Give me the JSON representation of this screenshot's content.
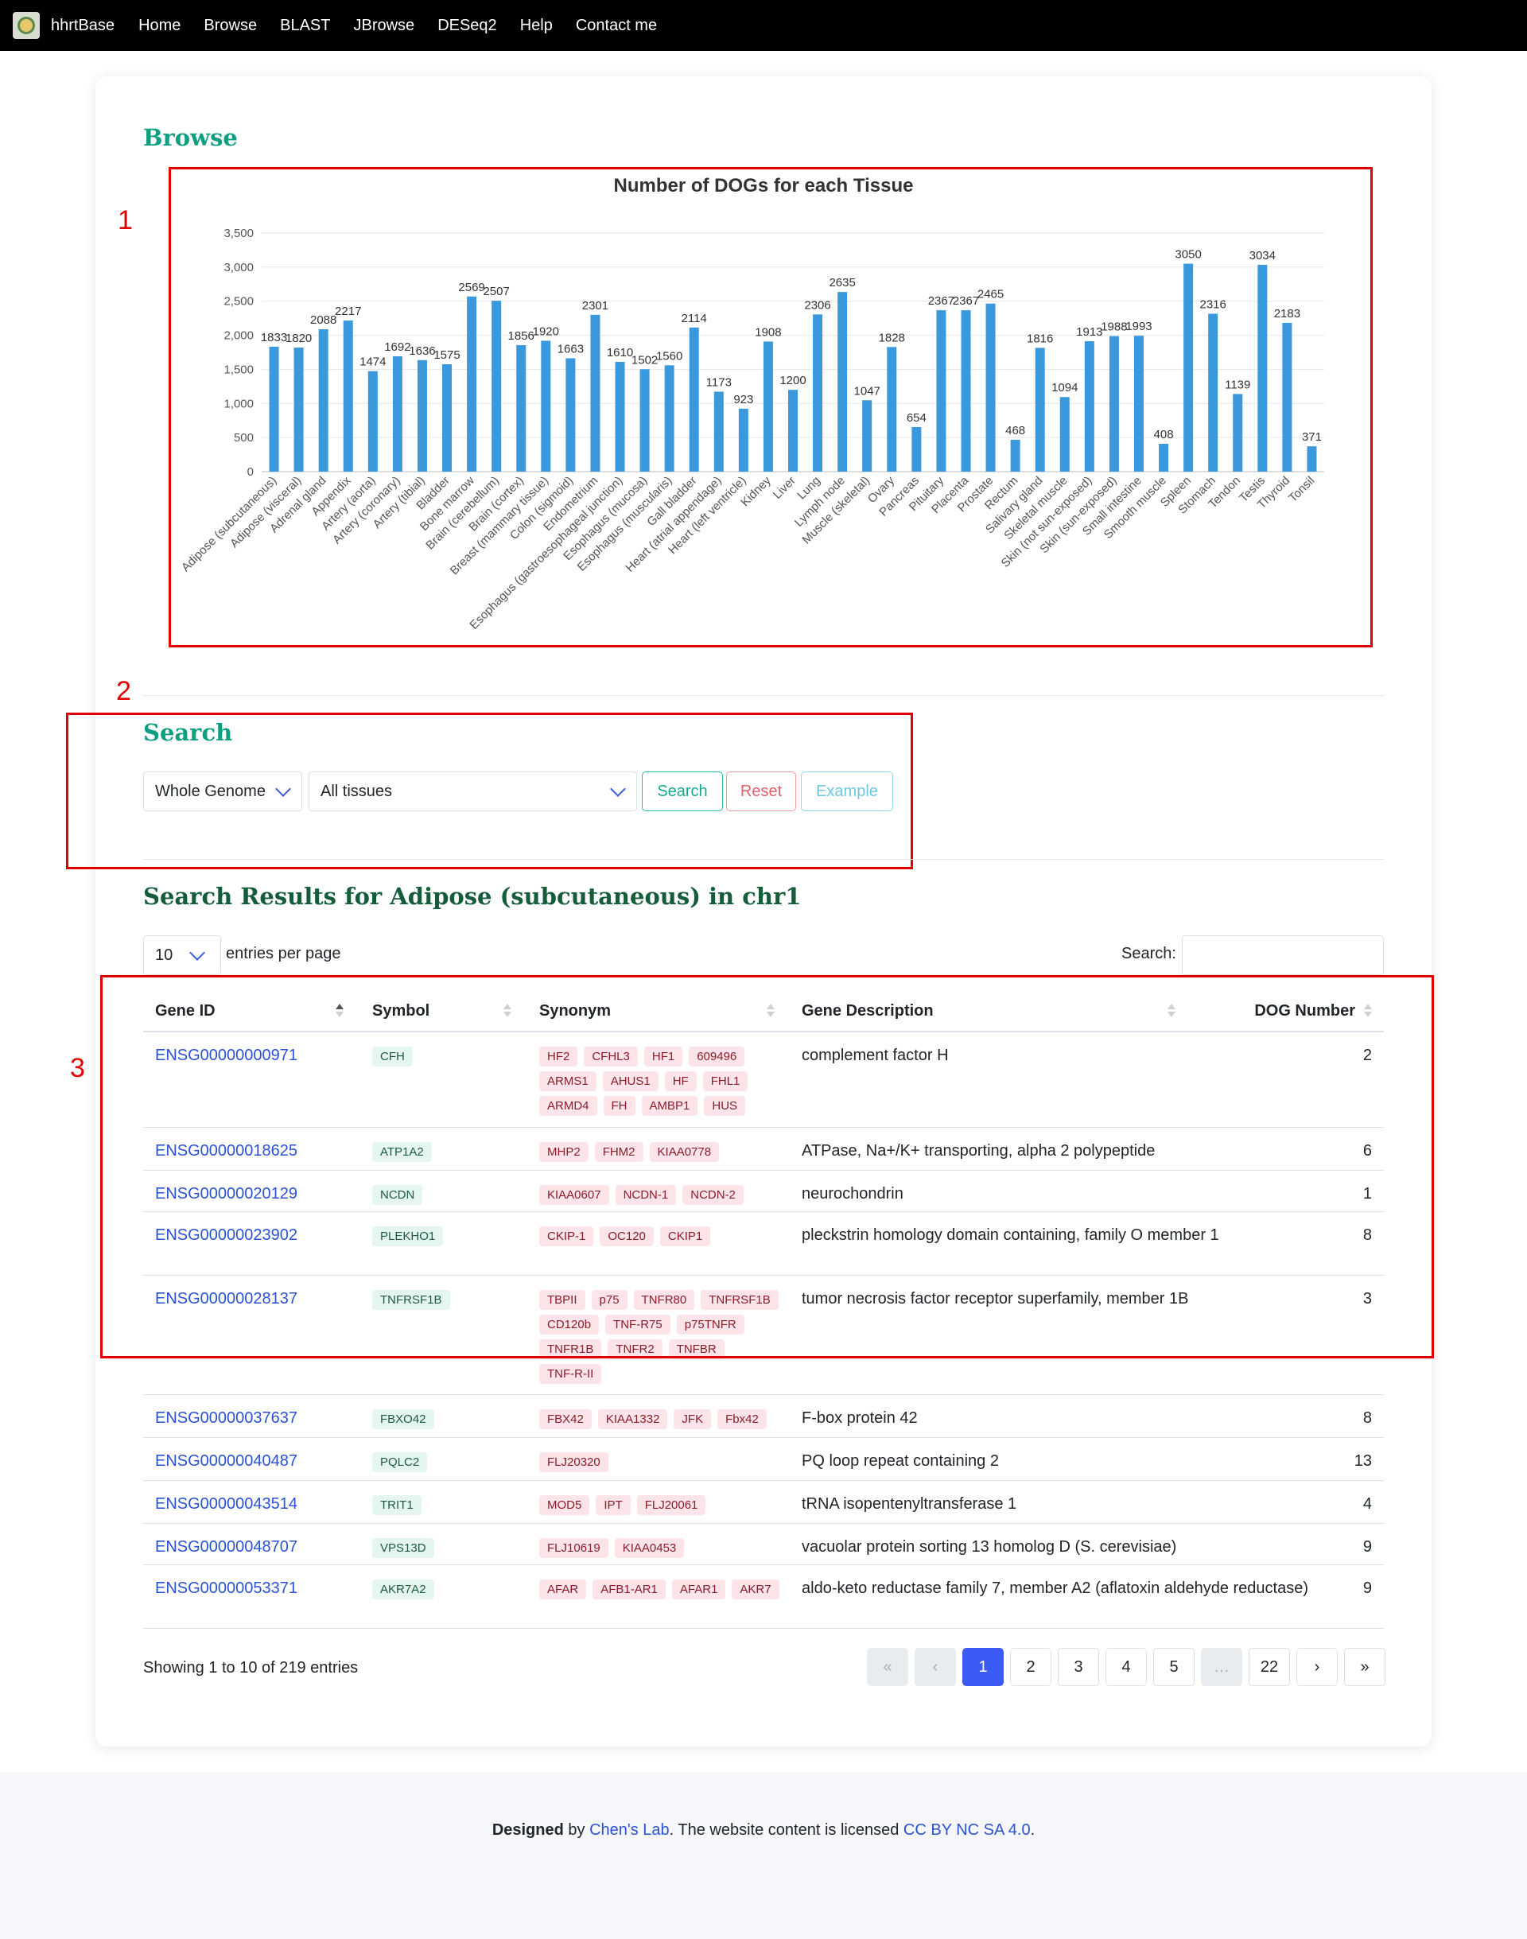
{
  "nav": {
    "brand": "hhrtBase",
    "items": [
      "Home",
      "Browse",
      "BLAST",
      "JBrowse",
      "DESeq2",
      "Help",
      "Contact me"
    ]
  },
  "browse": {
    "title": "Browse"
  },
  "chart_data": {
    "type": "bar",
    "title": "Number of DOGs for each Tissue",
    "xlabel": "",
    "ylabel": "",
    "ylim": [
      0,
      3500
    ],
    "yticks": [
      "0",
      "500",
      "1,000",
      "1,500",
      "2,000",
      "2,500",
      "3,000",
      "3,500"
    ],
    "grid": true,
    "color": "#3a98dd",
    "categories": [
      "Adipose (subcutaneous)",
      "Adipose (visceral)",
      "Adrenal gland",
      "Appendix",
      "Artery (aorta)",
      "Artery (coronary)",
      "Artery (tibial)",
      "Bladder",
      "Bone marrow",
      "Brain (cerebellum)",
      "Brain (cortex)",
      "Breast (mammary tissue)",
      "Colon (sigmoid)",
      "Endometrium",
      "Esophagus (gastroesophageal junction)",
      "Esophagus (mucosa)",
      "Esophagus (muscularis)",
      "Gall bladder",
      "Heart (atrial appendage)",
      "Heart (left ventricle)",
      "Kidney",
      "Liver",
      "Lung",
      "Lymph node",
      "Muscle (skeletal)",
      "Ovary",
      "Pancreas",
      "Pituitary",
      "Placenta",
      "Prostate",
      "Rectum",
      "Salivary gland",
      "Skeletal muscle",
      "Skin (not sun-exposed)",
      "Skin (sun-exposed)",
      "Small intestine",
      "Smooth muscle",
      "Spleen",
      "Stomach",
      "Tendon",
      "Testis",
      "Thyroid",
      "Tonsil"
    ],
    "values": [
      1833,
      1820,
      2088,
      2217,
      1474,
      1692,
      1636,
      1575,
      2569,
      2507,
      1856,
      1920,
      1663,
      2301,
      1610,
      1502,
      1560,
      2114,
      1173,
      923,
      1908,
      1200,
      2306,
      2635,
      1047,
      1828,
      654,
      2367,
      2367,
      2465,
      468,
      1816,
      1094,
      1913,
      1988,
      1993,
      408,
      3050,
      2316,
      1139,
      3034,
      2183,
      371
    ]
  },
  "annotations": [
    "1",
    "2",
    "3"
  ],
  "search": {
    "title": "Search",
    "scope_value": "Whole Genome",
    "tissue_value": "All tissues",
    "search_label": "Search",
    "reset_label": "Reset",
    "example_label": "Example"
  },
  "results": {
    "title": "Search Results for Adipose (subcutaneous) in chr1",
    "page_length": "10",
    "entries_label": "entries per page",
    "search_label": "Search:",
    "search_value": "",
    "columns": [
      "Gene ID",
      "Symbol",
      "Synonym",
      "Gene Description",
      "DOG Number"
    ],
    "rows": [
      {
        "id": "ENSG00000000971",
        "symbol": "CFH",
        "synonyms": [
          "HF2",
          "CFHL3",
          "HF1",
          "609496",
          "ARMS1",
          "AHUS1",
          "HF",
          "FHL1",
          "ARMD4",
          "FH",
          "AMBP1",
          "HUS"
        ],
        "desc": "complement factor H",
        "dog": "2"
      },
      {
        "id": "ENSG00000018625",
        "symbol": "ATP1A2",
        "synonyms": [
          "MHP2",
          "FHM2",
          "KIAA0778"
        ],
        "desc": "ATPase, Na+/K+ transporting, alpha 2 polypeptide",
        "dog": "6"
      },
      {
        "id": "ENSG00000020129",
        "symbol": "NCDN",
        "synonyms": [
          "KIAA0607",
          "NCDN-1",
          "NCDN-2"
        ],
        "desc": "neurochondrin",
        "dog": "1"
      },
      {
        "id": "ENSG00000023902",
        "symbol": "PLEKHO1",
        "synonyms": [
          "CKIP-1",
          "OC120",
          "CKIP1"
        ],
        "desc": "pleckstrin homology domain containing, family O member 1",
        "dog": "8"
      },
      {
        "id": "ENSG00000028137",
        "symbol": "TNFRSF1B",
        "synonyms": [
          "TBPII",
          "p75",
          "TNFR80",
          "TNFRSF1B",
          "CD120b",
          "TNF-R75",
          "p75TNFR",
          "TNFR1B",
          "TNFR2",
          "TNFBR",
          "TNF-R-II"
        ],
        "desc": "tumor necrosis factor receptor superfamily, member 1B",
        "dog": "3"
      },
      {
        "id": "ENSG00000037637",
        "symbol": "FBXO42",
        "synonyms": [
          "FBX42",
          "KIAA1332",
          "JFK",
          "Fbx42"
        ],
        "desc": "F-box protein 42",
        "dog": "8"
      },
      {
        "id": "ENSG00000040487",
        "symbol": "PQLC2",
        "synonyms": [
          "FLJ20320"
        ],
        "desc": "PQ loop repeat containing 2",
        "dog": "13"
      },
      {
        "id": "ENSG00000043514",
        "symbol": "TRIT1",
        "synonyms": [
          "MOD5",
          "IPT",
          "FLJ20061"
        ],
        "desc": "tRNA isopentenyltransferase 1",
        "dog": "4"
      },
      {
        "id": "ENSG00000048707",
        "symbol": "VPS13D",
        "synonyms": [
          "FLJ10619",
          "KIAA0453"
        ],
        "desc": "vacuolar protein sorting 13 homolog D (S. cerevisiae)",
        "dog": "9"
      },
      {
        "id": "ENSG00000053371",
        "symbol": "AKR7A2",
        "synonyms": [
          "AFAR",
          "AFB1-AR1",
          "AFAR1",
          "AKR7"
        ],
        "desc": "aldo-keto reductase family 7, member A2 (aflatoxin aldehyde reductase)",
        "dog": "9"
      }
    ],
    "showing": "Showing 1 to 10 of 219 entries",
    "pagination": [
      "«",
      "‹",
      "1",
      "2",
      "3",
      "4",
      "5",
      "…",
      "22",
      "›",
      "»"
    ],
    "current_page": "1"
  },
  "footer": {
    "designed": "Designed",
    "by": " by ",
    "lab": "Chen's Lab",
    "middle": ". The website content is licensed ",
    "license": "CC BY NC SA 4.0",
    "end": "."
  }
}
